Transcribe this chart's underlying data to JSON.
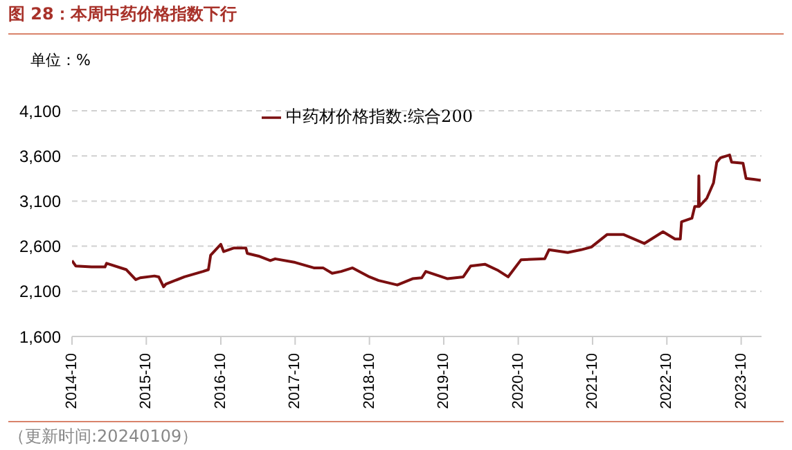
{
  "chart_data": {
    "type": "line",
    "title": "图 28：本周中药价格指数下行",
    "ylabel": "单位：%",
    "annotations": [
      "（更新时间:20240109）"
    ],
    "x": [
      "2014-10-01",
      "2014-10-20",
      "2015-01-05",
      "2015-03-12",
      "2015-03-20",
      "2015-06-25",
      "2015-08-10",
      "2015-09-01",
      "2015-11-10",
      "2015-12-01",
      "2015-12-25",
      "2016-01-05",
      "2016-04-05",
      "2016-07-05",
      "2016-08-01",
      "2016-08-12",
      "2016-10-01",
      "2016-10-15",
      "2016-12-05",
      "2017-02-01",
      "2017-02-08",
      "2017-04-05",
      "2017-06-01",
      "2017-06-25",
      "2017-10-01",
      "2018-01-01",
      "2018-02-15",
      "2018-04-01",
      "2018-05-15",
      "2018-07-10",
      "2018-10-01",
      "2018-11-15",
      "2019-02-15",
      "2019-05-01",
      "2019-06-15",
      "2019-07-05",
      "2019-10-20",
      "2020-01-05",
      "2020-02-10",
      "2020-04-20",
      "2020-06-25",
      "2020-08-12",
      "2020-10-15",
      "2021-02-08",
      "2021-03-01",
      "2021-06-01",
      "2021-08-05",
      "2021-09-25",
      "2021-12-12",
      "2022-03-01",
      "2022-06-12",
      "2022-09-12",
      "2022-11-10",
      "2022-12-06",
      "2022-12-12",
      "2023-02-01",
      "2023-02-15",
      "2023-03-05",
      "2023-03-07",
      "2023-03-09",
      "2023-04-15",
      "2023-05-18",
      "2023-06-03",
      "2023-06-22",
      "2023-08-05",
      "2023-08-15",
      "2023-10-10",
      "2023-10-25",
      "2023-12-01",
      "2024-01-05"
    ],
    "series": [
      {
        "name": "中药材价格指数:综合200",
        "color": "#7b0f10",
        "values": [
          2440,
          2380,
          2370,
          2370,
          2410,
          2340,
          2230,
          2250,
          2270,
          2260,
          2150,
          2180,
          2260,
          2320,
          2340,
          2500,
          2620,
          2540,
          2580,
          2580,
          2520,
          2490,
          2440,
          2460,
          2420,
          2360,
          2360,
          2300,
          2320,
          2360,
          2260,
          2220,
          2170,
          2240,
          2250,
          2320,
          2240,
          2260,
          2380,
          2400,
          2330,
          2260,
          2450,
          2460,
          2560,
          2530,
          2560,
          2590,
          2730,
          2730,
          2630,
          2760,
          2680,
          2680,
          2870,
          2910,
          3040,
          3040,
          3380,
          3040,
          3130,
          3300,
          3530,
          3580,
          3610,
          3530,
          3520,
          3350,
          3340,
          3330
        ]
      }
    ],
    "xlim": [
      "2014-10-01",
      "2024-01-09"
    ],
    "xticks": [
      "2014-10",
      "2015-10",
      "2016-10",
      "2017-10",
      "2018-10",
      "2019-10",
      "2020-10",
      "2021-10",
      "2022-10",
      "2023-10"
    ],
    "ylim": [
      1600,
      4100
    ],
    "yticks": [
      {
        "value": 1600,
        "label": "1,600"
      },
      {
        "value": 2100,
        "label": "2,100"
      },
      {
        "value": 2600,
        "label": "2,600"
      },
      {
        "value": 3100,
        "label": "3,100"
      },
      {
        "value": 3600,
        "label": "3,600"
      },
      {
        "value": 4100,
        "label": "4,100"
      }
    ],
    "grid": "y",
    "legend": "top",
    "marker": "none",
    "line_style": "solid"
  }
}
